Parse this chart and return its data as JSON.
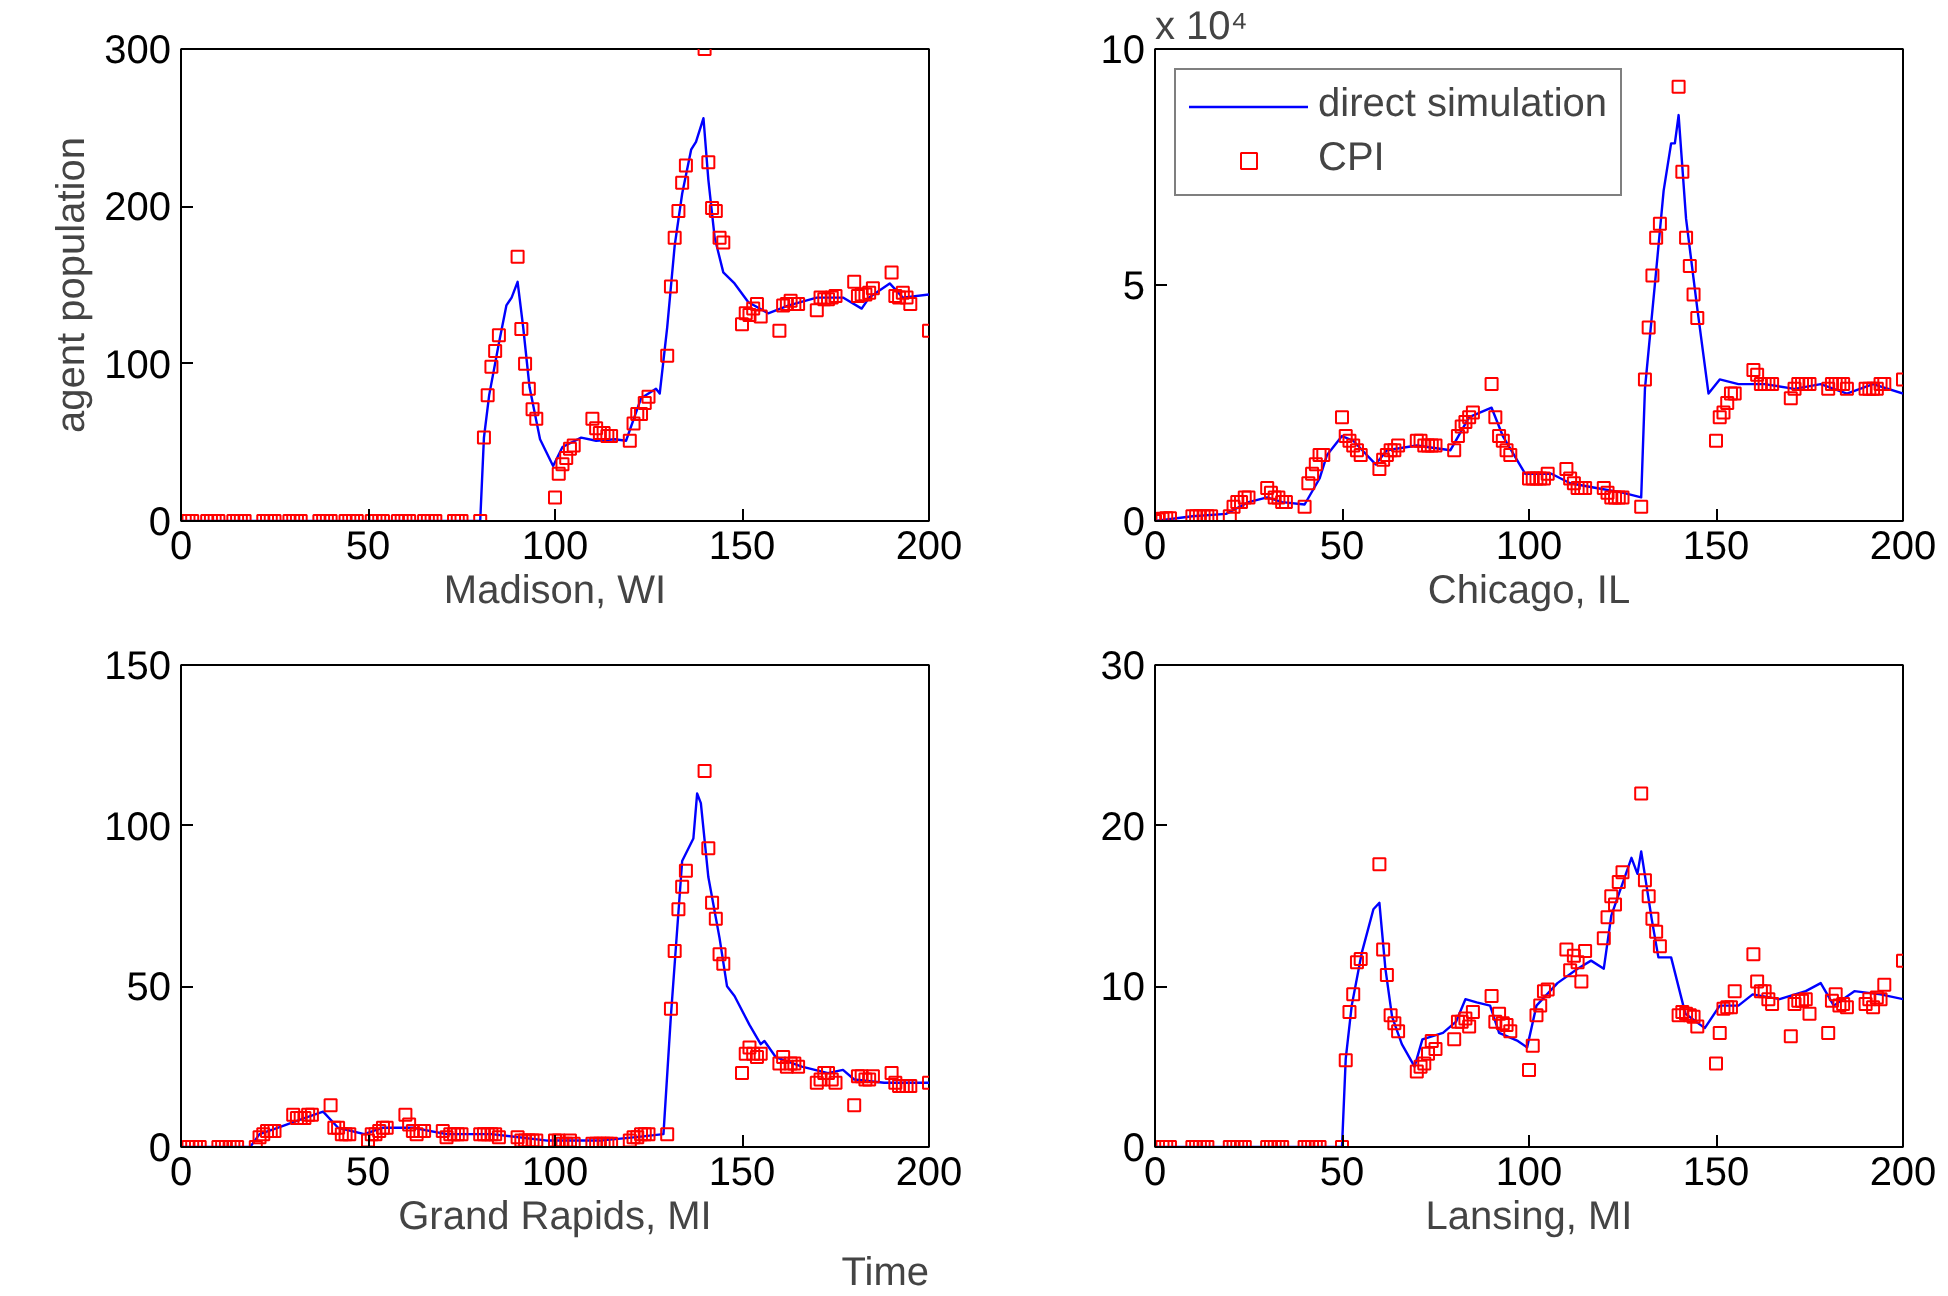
{
  "chart_data": [
    {
      "type": "line",
      "xlabel": "Madison, WI",
      "ylabel": "agent population",
      "xlim": [
        0,
        200
      ],
      "ylim": [
        0,
        300
      ],
      "xticks": [
        0,
        50,
        100,
        150,
        200
      ],
      "yticks": [
        0,
        100,
        200,
        300
      ],
      "grid": false,
      "legend": false,
      "series": [
        {
          "marker": "none",
          "color": "#0000ff",
          "x": [
            0,
            80,
            81,
            82.4,
            85,
            87,
            88.4,
            90,
            91.5,
            93.2,
            96,
            99.5,
            102,
            107,
            111,
            116,
            119,
            123,
            127,
            128,
            130,
            132,
            134,
            136.4,
            137.7,
            139.7,
            141,
            142.7,
            145,
            148,
            151.7,
            157,
            162.5,
            170,
            177,
            182,
            184,
            189.5,
            193,
            200
          ],
          "values": [
            0,
            0,
            53,
            80,
            113,
            137,
            142,
            152,
            123,
            85,
            52,
            35,
            47,
            53,
            51,
            52,
            51,
            78,
            84,
            81,
            123,
            175,
            208,
            236,
            241,
            256,
            217,
            180,
            158,
            151,
            139,
            132,
            137,
            142,
            142,
            135,
            142,
            151,
            142,
            144
          ]
        },
        {
          "type": "scatter",
          "marker": "square",
          "color": "#ff0000",
          "x": [
            1,
            2,
            3,
            7,
            8,
            9,
            10,
            14,
            15,
            16,
            17,
            22,
            23,
            24,
            25,
            29,
            30,
            31,
            32,
            37,
            38,
            39,
            40,
            44,
            45,
            46,
            47,
            51,
            52,
            53,
            54,
            58,
            59,
            60,
            61,
            65,
            66,
            67,
            68,
            73,
            74,
            75,
            80,
            81,
            82,
            83,
            84,
            85,
            90,
            91,
            92,
            93,
            94,
            95,
            100,
            101,
            102,
            103,
            104,
            105,
            110,
            111,
            112,
            113,
            114,
            115,
            120,
            121,
            122,
            123,
            124,
            125,
            130,
            131,
            132,
            133,
            134,
            135,
            140,
            141,
            142,
            143,
            144,
            145,
            150,
            151,
            152,
            153,
            154,
            155,
            160,
            161,
            162,
            163,
            164,
            165,
            170,
            171,
            172,
            173,
            174,
            175,
            180,
            181,
            182,
            183,
            184,
            185,
            190,
            191,
            192,
            193,
            194,
            195,
            200
          ],
          "values": [
            0,
            0,
            0,
            0,
            0,
            0,
            0,
            0,
            0,
            0,
            0,
            0,
            0,
            0,
            0,
            0,
            0,
            0,
            0,
            0,
            0,
            0,
            0,
            0,
            0,
            0,
            0,
            0,
            0,
            0,
            0,
            0,
            0,
            0,
            0,
            0,
            0,
            0,
            0,
            0,
            0,
            0,
            0,
            53,
            80,
            98,
            108,
            118,
            168,
            122,
            100,
            84,
            71,
            65,
            15,
            30,
            36,
            40,
            46,
            48,
            65,
            59,
            56,
            56,
            54,
            54,
            51,
            62,
            68,
            68,
            75,
            79,
            105,
            149,
            180,
            197,
            215,
            226,
            300,
            228,
            199,
            197,
            180,
            177,
            125,
            132,
            131,
            135,
            138,
            130,
            121,
            137,
            138,
            140,
            138,
            138,
            134,
            142,
            141,
            141,
            142,
            143,
            152,
            143,
            144,
            144,
            145,
            148,
            158,
            143,
            142,
            145,
            142,
            138,
            121
          ]
        }
      ]
    },
    {
      "type": "line",
      "xlabel": "Chicago, IL",
      "xlim": [
        0,
        200
      ],
      "ylim": [
        0,
        10
      ],
      "xticks": [
        0,
        50,
        100,
        150,
        200
      ],
      "yticks": [
        0,
        5,
        10
      ],
      "annotations": [
        "x 10⁴"
      ],
      "grid": false,
      "legend": "top left",
      "series": [
        {
          "marker": "none",
          "name": "direct simulation",
          "color": "#0000ff",
          "x": [
            0,
            10,
            19,
            25,
            30,
            34,
            40,
            44,
            46,
            50,
            53,
            59,
            62,
            70,
            79,
            84,
            90,
            93,
            99,
            106,
            111,
            118,
            125,
            130,
            131,
            134,
            136,
            138,
            139,
            140,
            142,
            145,
            148,
            151,
            156,
            163,
            171,
            178,
            185,
            192,
            200
          ],
          "values": [
            0,
            0.1,
            0.15,
            0.4,
            0.5,
            0.4,
            0.35,
            0.9,
            1.4,
            1.8,
            1.7,
            1.2,
            1.5,
            1.6,
            1.5,
            2.2,
            2.4,
            1.8,
            1.0,
            1.0,
            0.8,
            0.7,
            0.6,
            0.5,
            2.8,
            5.3,
            7.0,
            8.0,
            8.0,
            8.6,
            6.4,
            4.5,
            2.7,
            3.0,
            2.9,
            2.9,
            2.8,
            2.9,
            2.7,
            2.9,
            2.7
          ]
        },
        {
          "type": "scatter",
          "marker": "square",
          "name": "CPI",
          "color": "#ff0000",
          "x": [
            0,
            1,
            2,
            3,
            4,
            10,
            11,
            12,
            13,
            14,
            15,
            20,
            21,
            22,
            23,
            24,
            25,
            30,
            31,
            32,
            33,
            34,
            35,
            40,
            41,
            42,
            43,
            44,
            45,
            50,
            51,
            52,
            53,
            54,
            55,
            60,
            61,
            62,
            63,
            64,
            65,
            70,
            71,
            72,
            73,
            74,
            75,
            80,
            81,
            82,
            83,
            84,
            85,
            90,
            91,
            92,
            93,
            94,
            95,
            100,
            101,
            102,
            103,
            104,
            105,
            110,
            111,
            112,
            113,
            114,
            115,
            120,
            121,
            122,
            123,
            124,
            125,
            130,
            131,
            132,
            133,
            134,
            135,
            140,
            141,
            142,
            143,
            144,
            145,
            150,
            151,
            152,
            153,
            154,
            155,
            160,
            161,
            162,
            163,
            164,
            165,
            170,
            171,
            172,
            173,
            174,
            175,
            180,
            181,
            182,
            183,
            184,
            185,
            190,
            191,
            192,
            193,
            194,
            195,
            200
          ],
          "values": [
            0,
            0.03,
            0.05,
            0.06,
            0.06,
            0.1,
            0.1,
            0.1,
            0.1,
            0.1,
            0.1,
            0.1,
            0.3,
            0.4,
            0.4,
            0.5,
            0.5,
            0.7,
            0.6,
            0.5,
            0.5,
            0.4,
            0.4,
            0.3,
            0.8,
            1.0,
            1.2,
            1.4,
            1.4,
            2.2,
            1.8,
            1.7,
            1.6,
            1.5,
            1.4,
            1.1,
            1.3,
            1.4,
            1.5,
            1.5,
            1.6,
            1.7,
            1.7,
            1.6,
            1.6,
            1.6,
            1.6,
            1.5,
            1.8,
            2.0,
            2.1,
            2.2,
            2.3,
            2.9,
            2.2,
            1.8,
            1.7,
            1.5,
            1.4,
            0.9,
            0.9,
            0.9,
            0.9,
            0.9,
            1.0,
            1.1,
            0.9,
            0.8,
            0.7,
            0.7,
            0.7,
            0.7,
            0.6,
            0.5,
            0.5,
            0.5,
            0.5,
            0.3,
            3.0,
            4.1,
            5.2,
            6.0,
            6.3,
            9.2,
            7.4,
            6.0,
            5.4,
            4.8,
            4.3,
            1.7,
            2.2,
            2.3,
            2.5,
            2.7,
            2.7,
            3.2,
            3.1,
            2.9,
            2.9,
            2.9,
            2.9,
            2.6,
            2.8,
            2.9,
            2.9,
            2.9,
            2.9,
            2.8,
            2.9,
            2.9,
            2.9,
            2.9,
            2.8,
            2.8,
            2.8,
            2.8,
            2.8,
            2.9,
            2.9,
            3.0
          ]
        }
      ]
    },
    {
      "type": "line",
      "xlabel": "Grand Rapids, MI",
      "xlim": [
        0,
        200
      ],
      "ylim": [
        0,
        150
      ],
      "xticks": [
        0,
        50,
        100,
        150,
        200
      ],
      "yticks": [
        0,
        50,
        100,
        150
      ],
      "annotations": [
        "Time"
      ],
      "grid": false,
      "legend": false,
      "series": [
        {
          "marker": "none",
          "color": "#0000ff",
          "x": [
            0,
            18.5,
            21,
            26,
            33,
            38,
            42,
            49,
            54,
            62,
            71,
            83,
            98,
            112,
            121,
            129,
            131,
            134,
            137,
            138,
            139,
            141,
            144,
            146,
            148,
            152,
            155,
            156,
            159,
            166,
            173,
            177,
            180,
            188,
            200
          ],
          "values": [
            0,
            0,
            4,
            6,
            9,
            11,
            6,
            4,
            6,
            6,
            4,
            4,
            2,
            2,
            3,
            4,
            41,
            89,
            96,
            110,
            107,
            84,
            65,
            50,
            47,
            38,
            32,
            33,
            28,
            25,
            23,
            24,
            21,
            20,
            20
          ]
        },
        {
          "type": "scatter",
          "marker": "square",
          "color": "#ff0000",
          "x": [
            2,
            3,
            4,
            5,
            10,
            11,
            12,
            13,
            14,
            15,
            20,
            21,
            22,
            23,
            24,
            25,
            30,
            31,
            32,
            33,
            34,
            35,
            40,
            41,
            42,
            43,
            44,
            45,
            50,
            51,
            52,
            53,
            54,
            55,
            60,
            61,
            62,
            63,
            64,
            65,
            70,
            71,
            72,
            73,
            74,
            75,
            80,
            81,
            82,
            83,
            84,
            85,
            90,
            91,
            92,
            93,
            94,
            95,
            100,
            101,
            102,
            103,
            104,
            105,
            110,
            111,
            112,
            113,
            114,
            115,
            120,
            121,
            122,
            123,
            124,
            125,
            130,
            131,
            132,
            133,
            134,
            135,
            140,
            141,
            142,
            143,
            144,
            145,
            150,
            151,
            152,
            153,
            154,
            155,
            160,
            161,
            162,
            163,
            164,
            165,
            170,
            171,
            172,
            173,
            174,
            175,
            180,
            181,
            182,
            183,
            184,
            185,
            190,
            191,
            192,
            193,
            194,
            195,
            200
          ],
          "values": [
            0,
            0,
            0,
            0,
            0,
            0,
            0,
            0,
            0,
            0,
            0,
            3,
            4,
            5,
            5,
            5,
            10,
            9,
            9,
            9,
            10,
            10,
            13,
            6,
            6,
            4,
            4,
            4,
            2,
            4,
            4,
            5,
            6,
            6,
            10,
            7,
            5,
            4,
            5,
            5,
            5,
            3,
            4,
            4,
            4,
            4,
            4,
            4,
            4,
            4,
            4,
            3,
            3,
            2,
            2,
            2,
            2,
            2,
            2,
            2,
            1,
            1,
            2,
            1,
            1,
            1,
            1,
            1,
            1,
            1,
            2,
            3,
            3,
            4,
            4,
            4,
            4,
            43,
            61,
            74,
            81,
            86,
            117,
            93,
            76,
            71,
            60,
            57,
            23,
            29,
            31,
            29,
            28,
            29,
            26,
            28,
            25,
            26,
            26,
            25,
            20,
            21,
            23,
            23,
            21,
            20,
            13,
            22,
            22,
            21,
            21,
            22,
            23,
            20,
            19,
            19,
            19,
            19,
            20
          ]
        }
      ]
    },
    {
      "type": "line",
      "xlabel": "Lansing, MI",
      "xlim": [
        0,
        200
      ],
      "ylim": [
        0,
        30
      ],
      "xticks": [
        0,
        50,
        100,
        150,
        200
      ],
      "yticks": [
        0,
        10,
        20,
        30
      ],
      "grid": false,
      "legend": false,
      "series": [
        {
          "marker": "none",
          "color": "#0000ff",
          "x": [
            0,
            50,
            51,
            52.6,
            55.3,
            58.4,
            60,
            61.6,
            63.4,
            66,
            69.4,
            71.5,
            77,
            80.5,
            83,
            86,
            89.6,
            92,
            97,
            99.5,
            102,
            107.6,
            113,
            116.6,
            120,
            122,
            125.6,
            127.4,
            129,
            130,
            132.8,
            134.6,
            138,
            141.8,
            147,
            151,
            156,
            159.8,
            167,
            174,
            178,
            181.5,
            187,
            194,
            200
          ],
          "values": [
            0,
            0,
            5.5,
            8.8,
            12.1,
            14.8,
            15.2,
            11.1,
            8.1,
            6.4,
            5.0,
            6.7,
            7.1,
            7.8,
            9.2,
            9.0,
            8.8,
            7.1,
            6.6,
            6.2,
            8.8,
            10.2,
            11.1,
            11.6,
            11.1,
            14.4,
            16.8,
            18.0,
            17.0,
            18.4,
            14.2,
            11.8,
            11.8,
            8.3,
            7.4,
            8.8,
            8.8,
            9.5,
            9.2,
            9.7,
            10.2,
            8.8,
            9.7,
            9.5,
            9.2
          ]
        },
        {
          "type": "scatter",
          "marker": "square",
          "color": "#ff0000",
          "x": [
            2,
            3,
            4,
            10,
            11,
            12,
            13,
            14,
            20,
            21,
            22,
            23,
            24,
            30,
            31,
            32,
            33,
            34,
            40,
            41,
            42,
            43,
            44,
            50,
            51,
            52,
            53,
            54,
            55,
            60,
            61,
            62,
            63,
            64,
            65,
            70,
            71,
            72,
            73,
            74,
            75,
            80,
            81,
            82,
            83,
            84,
            85,
            90,
            91,
            92,
            93,
            94,
            95,
            100,
            101,
            102,
            103,
            104,
            105,
            110,
            111,
            112,
            113,
            114,
            115,
            120,
            121,
            122,
            123,
            124,
            125,
            130,
            131,
            132,
            133,
            134,
            135,
            140,
            141,
            142,
            143,
            144,
            145,
            150,
            151,
            152,
            153,
            154,
            155,
            160,
            161,
            162,
            163,
            164,
            165,
            170,
            171,
            172,
            173,
            174,
            175,
            180,
            181,
            182,
            183,
            184,
            185,
            190,
            191,
            192,
            193,
            194,
            195,
            200
          ],
          "values": [
            0,
            0,
            0,
            0,
            0,
            0,
            0,
            0,
            0,
            0,
            0,
            0,
            0,
            0,
            0,
            0,
            0,
            0,
            0,
            0,
            0,
            0,
            0,
            0,
            5.4,
            8.4,
            9.5,
            11.5,
            11.7,
            17.6,
            12.3,
            10.7,
            8.2,
            7.7,
            7.2,
            4.7,
            5.0,
            5.2,
            5.8,
            6.6,
            6.1,
            6.7,
            7.8,
            7.8,
            8.0,
            7.5,
            8.4,
            9.4,
            7.8,
            8.3,
            7.7,
            7.6,
            7.2,
            4.8,
            6.3,
            8.2,
            8.8,
            9.7,
            9.8,
            12.3,
            11.0,
            11.9,
            11.5,
            10.3,
            12.2,
            13.0,
            14.3,
            15.6,
            15.1,
            16.5,
            17.1,
            22.0,
            16.6,
            15.6,
            14.2,
            13.4,
            12.5,
            8.2,
            8.4,
            8.3,
            8.2,
            8.1,
            7.5,
            5.2,
            7.1,
            8.6,
            8.7,
            8.7,
            9.7,
            12.0,
            10.3,
            9.7,
            9.7,
            9.2,
            8.9,
            6.9,
            8.9,
            9.1,
            9.1,
            9.2,
            8.3,
            7.1,
            9.1,
            9.5,
            8.8,
            8.9,
            8.7,
            8.9,
            9.2,
            8.7,
            9.3,
            9.2,
            10.1,
            11.6
          ]
        }
      ]
    }
  ]
}
